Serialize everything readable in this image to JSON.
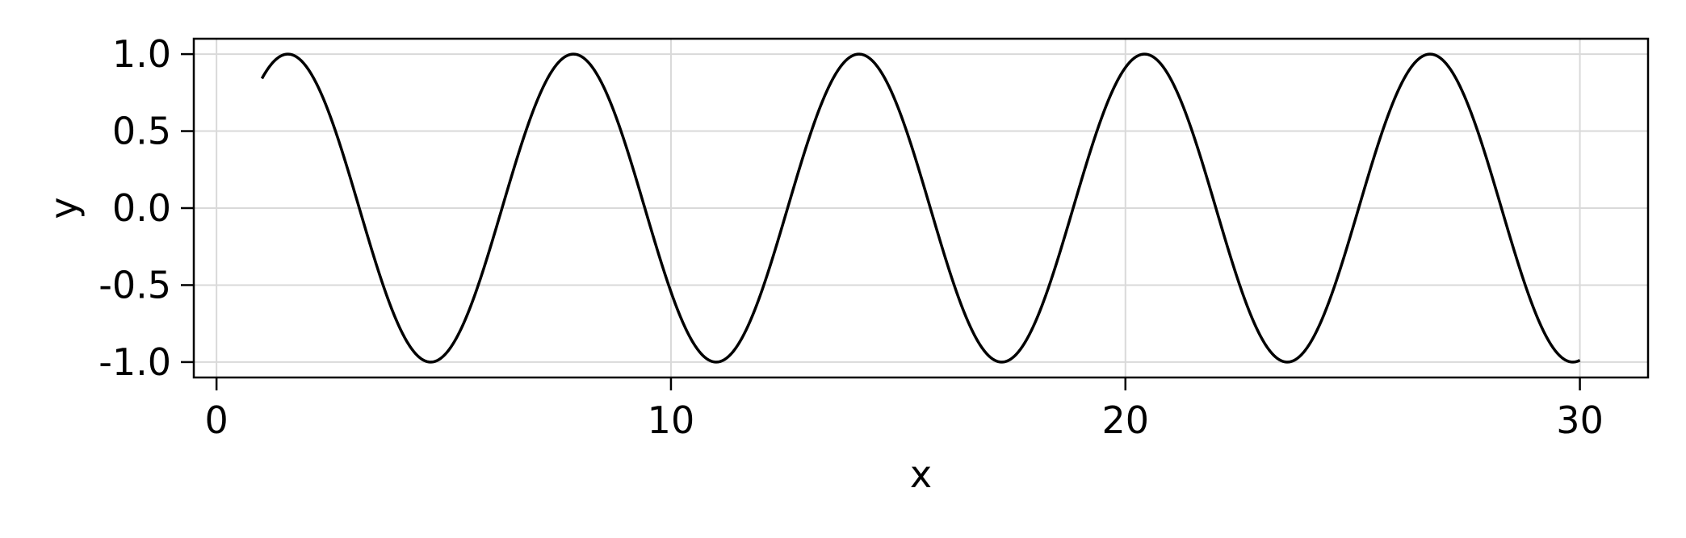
{
  "chart_data": {
    "type": "line",
    "title": "",
    "xlabel": "x",
    "ylabel": "y",
    "xlim": [
      -0.5,
      31.5
    ],
    "ylim": [
      -1.1,
      1.1
    ],
    "grid": true,
    "x_ticks": [
      0,
      10,
      20,
      30
    ],
    "x_tick_labels": [
      "0",
      "10",
      "20",
      "30"
    ],
    "y_ticks": [
      1.0,
      0.5,
      0.0,
      -0.5,
      -1.0
    ],
    "y_tick_labels": [
      "1.0",
      "0.5",
      "0.0",
      "-0.5",
      "-1.0"
    ],
    "series": [
      {
        "function": "sin",
        "x_start": 1,
        "x_end": 30,
        "color": "#000000"
      }
    ]
  },
  "colors": {
    "line": "#000000",
    "grid": "#d9d9d9",
    "frame": "#000000",
    "background": "#ffffff"
  }
}
